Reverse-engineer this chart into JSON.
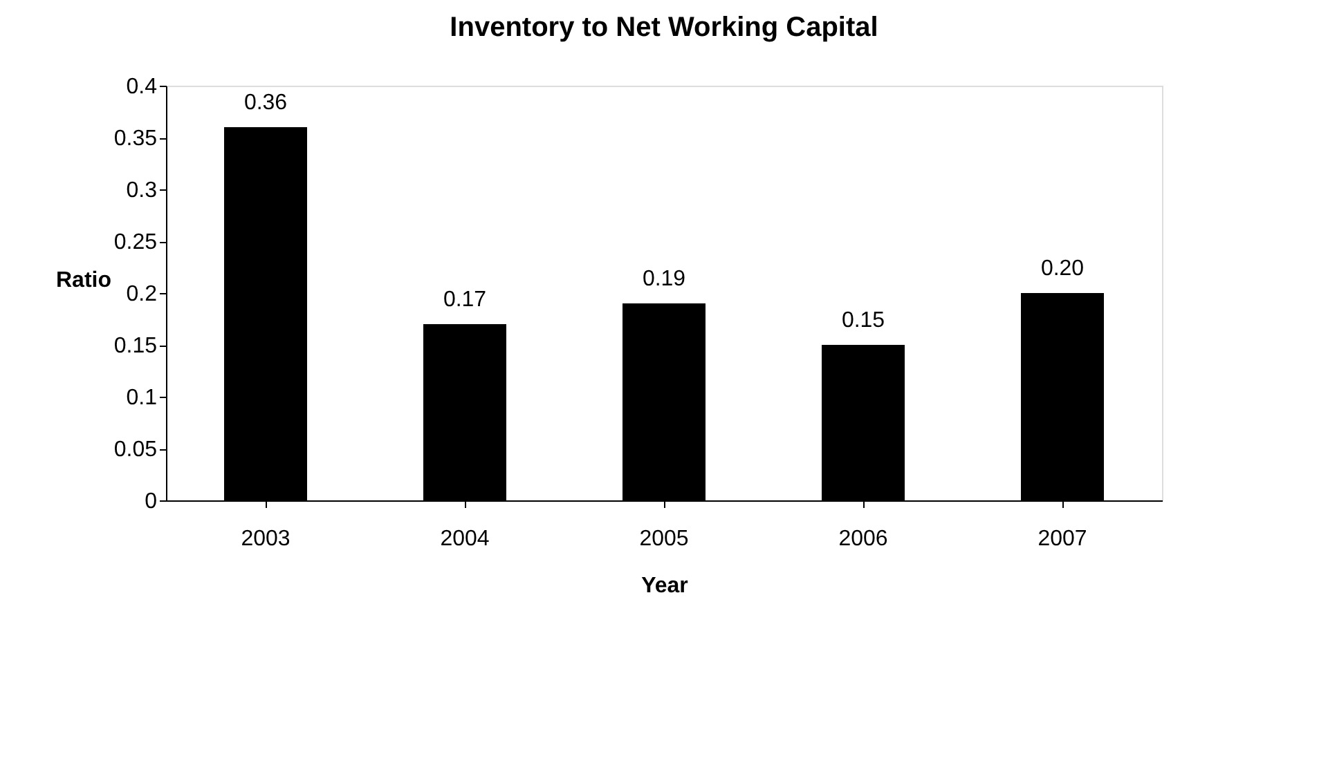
{
  "chart_data": {
    "type": "bar",
    "title": "Inventory to Net Working Capital",
    "xlabel": "Year",
    "ylabel": "Ratio",
    "categories": [
      "2003",
      "2004",
      "2005",
      "2006",
      "2007"
    ],
    "values": [
      0.36,
      0.17,
      0.19,
      0.15,
      0.2
    ],
    "value_labels": [
      "0.36",
      "0.17",
      "0.19",
      "0.15",
      "0.20"
    ],
    "color": "#000000",
    "ylim": [
      0,
      0.4
    ],
    "yticks": [
      0,
      0.05,
      0.1,
      0.15,
      0.2,
      0.25,
      0.3,
      0.35,
      0.4
    ],
    "grid": false
  }
}
